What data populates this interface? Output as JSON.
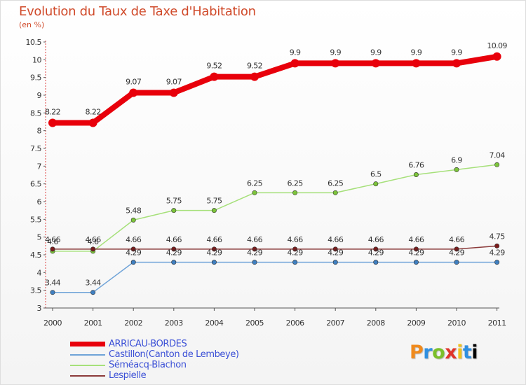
{
  "chart_data": {
    "type": "line",
    "title": "Evolution du Taux de Taxe d'Habitation",
    "subtitle": "(en %)",
    "x": [
      "2000",
      "2001",
      "2002",
      "2003",
      "2004",
      "2005",
      "2006",
      "2007",
      "2008",
      "2009",
      "2010",
      "2011"
    ],
    "ylim": [
      3,
      10.5
    ],
    "yticks": [
      "3",
      "3.5",
      "4",
      "4.5",
      "5",
      "5.5",
      "6",
      "6.5",
      "7",
      "7.5",
      "8",
      "8.5",
      "9",
      "9.5",
      "10",
      "10.5"
    ],
    "grid": false,
    "series": [
      {
        "name": "ARRICAU-BORDES",
        "color": "#e8000b",
        "marker_color": "#e8000b",
        "values": [
          8.22,
          8.22,
          9.07,
          9.07,
          9.52,
          9.52,
          9.9,
          9.9,
          9.9,
          9.9,
          9.9,
          10.09
        ],
        "labels": [
          "8.22",
          "8.22",
          "9.07",
          "9.07",
          "9.52",
          "9.52",
          "9.9",
          "9.9",
          "9.9",
          "9.9",
          "9.9",
          "10.09"
        ]
      },
      {
        "name": "Castillon(Canton de Lembeye)",
        "color": "#6fa3d8",
        "marker_color": "#3f7fc0",
        "values": [
          3.44,
          3.44,
          4.29,
          4.29,
          4.29,
          4.29,
          4.29,
          4.29,
          4.29,
          4.29,
          4.29,
          4.29
        ],
        "labels": [
          "3.44",
          "3.44",
          "4.29",
          "4.29",
          "4.29",
          "4.29",
          "4.29",
          "4.29",
          "4.29",
          "4.29",
          "4.29",
          "4.29"
        ]
      },
      {
        "name": "Séméacq-Blachon",
        "color": "#a6e07a",
        "marker_color": "#7cc43a",
        "values": [
          4.6,
          4.6,
          5.48,
          5.75,
          5.75,
          6.25,
          6.25,
          6.25,
          6.5,
          6.76,
          6.9,
          7.04
        ],
        "labels": [
          "4.6",
          "4.6",
          "5.48",
          "5.75",
          "5.75",
          "6.25",
          "6.25",
          "6.25",
          "6.5",
          "6.76",
          "6.9",
          "7.04"
        ]
      },
      {
        "name": "Lespielle",
        "color": "#8b3a3a",
        "marker_color": "#7a1c1c",
        "values": [
          4.66,
          4.66,
          4.66,
          4.66,
          4.66,
          4.66,
          4.66,
          4.66,
          4.66,
          4.66,
          4.66,
          4.75
        ],
        "labels": [
          "4.66",
          "4.66",
          "4.66",
          "4.66",
          "4.66",
          "4.66",
          "4.66",
          "4.66",
          "4.66",
          "4.66",
          "4.66",
          "4.75"
        ]
      }
    ]
  },
  "logo": {
    "letters": [
      "P",
      "r",
      "o",
      "x",
      "i",
      "t",
      "i"
    ]
  }
}
